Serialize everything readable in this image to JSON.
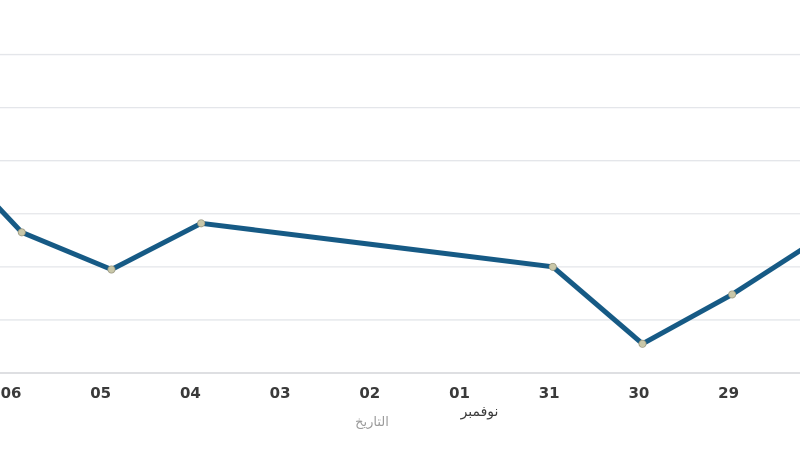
{
  "chart_data": {
    "type": "line",
    "x_order": "right-to-left",
    "ylim": [
      0,
      6.5
    ],
    "grid": true,
    "xlabel": "التاريخ",
    "month_annotation": {
      "text": "نوفمبر",
      "at": "01"
    },
    "tick_labels": [
      "06",
      "05",
      "04",
      "03",
      "02",
      "01",
      "31",
      "30",
      "29"
    ],
    "series": [
      {
        "color": "#165a85",
        "points": [
          {
            "x": 6.47,
            "y": 3.71
          },
          {
            "x": 5.88,
            "y": 2.65
          },
          {
            "x": 4.88,
            "y": 1.95
          },
          {
            "x": 3.88,
            "y": 2.82
          },
          {
            "x": -0.04,
            "y": 2.0
          },
          {
            "x": -1.04,
            "y": 0.55
          },
          {
            "x": -2.04,
            "y": 1.48
          },
          {
            "x": -3.04,
            "y": 2.57
          },
          {
            "x": -3.28,
            "y": 2.65
          }
        ]
      }
    ]
  }
}
